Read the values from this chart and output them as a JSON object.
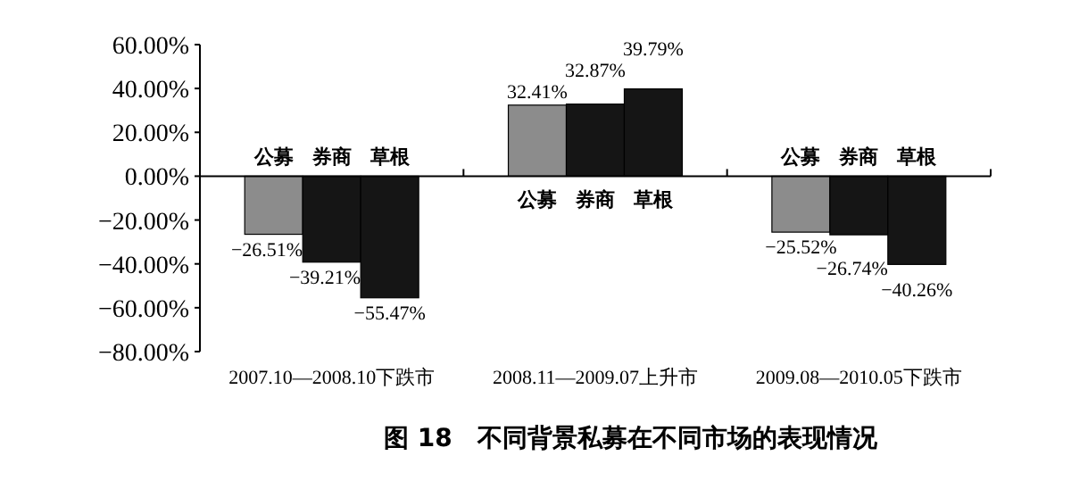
{
  "chart_data": {
    "type": "bar",
    "title": "图 18　不同背景私募在不同市场的表现情况",
    "categories": [
      "2007.10—2008.10下跌市",
      "2008.11—2009.07上升市",
      "2009.08—2010.05下跌市"
    ],
    "series": [
      {
        "name": "公募",
        "color": "#8c8c8c",
        "values": [
          -26.51,
          32.41,
          -25.52
        ]
      },
      {
        "name": "券商",
        "color": "#151515",
        "values": [
          -39.21,
          32.87,
          -26.74
        ]
      },
      {
        "name": "草根",
        "color": "#151515",
        "values": [
          -55.47,
          39.79,
          -40.26
        ]
      }
    ],
    "ylim": [
      -80,
      60
    ],
    "yticks": [
      {
        "value": 60,
        "label": "60.00%"
      },
      {
        "value": 40,
        "label": "40.00%"
      },
      {
        "value": 20,
        "label": "20.00%"
      },
      {
        "value": 0,
        "label": "0.00%"
      },
      {
        "value": -20,
        "label": "−20.00%"
      },
      {
        "value": -40,
        "label": "−40.00%"
      },
      {
        "value": -60,
        "label": "−60.00%"
      },
      {
        "value": -80,
        "label": "−80.00%"
      }
    ],
    "value_labels": [
      [
        "−26.51%",
        "32.41%",
        "−25.52%"
      ],
      [
        "−39.21%",
        "32.87%",
        "−26.74%"
      ],
      [
        "−55.47%",
        "39.79%",
        "−40.26%"
      ]
    ]
  }
}
